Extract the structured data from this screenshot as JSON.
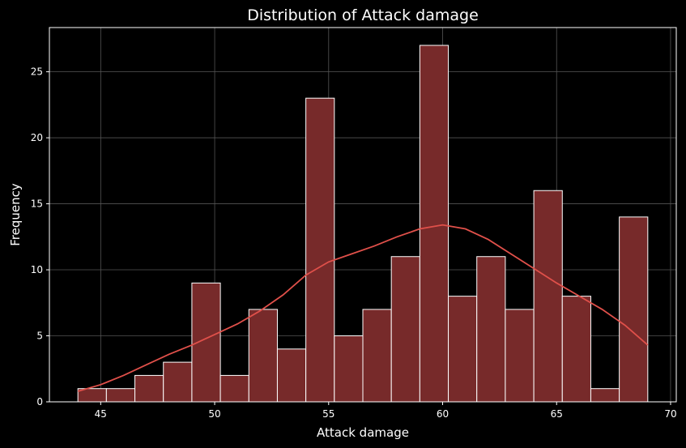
{
  "chart_data": {
    "type": "bar",
    "title": "Distribution of Attack damage",
    "xlabel": "Attack damage",
    "ylabel": "Frequency",
    "xlim": [
      42.75,
      70.25
    ],
    "ylim": [
      0,
      28.35
    ],
    "xticks": [
      45,
      50,
      55,
      60,
      65,
      70
    ],
    "yticks": [
      0,
      5,
      10,
      15,
      20,
      25
    ],
    "grid": true,
    "bin_edges": [
      44,
      45.25,
      46.5,
      47.75,
      49,
      50.25,
      51.5,
      52.75,
      54,
      55.25,
      56.5,
      57.75,
      59,
      60.25,
      61.5,
      62.75,
      64,
      65.25,
      66.5,
      67.75,
      69
    ],
    "values": [
      1,
      1,
      2,
      3,
      9,
      2,
      7,
      4,
      23,
      5,
      7,
      11,
      27,
      8,
      11,
      7,
      16,
      8,
      1,
      14
    ],
    "kde": {
      "x": [
        44,
        45,
        46,
        47,
        48,
        49,
        50,
        51,
        52,
        53,
        54,
        55,
        56,
        57,
        58,
        59,
        60,
        61,
        62,
        63,
        64,
        65,
        66,
        67,
        68,
        69
      ],
      "y": [
        0.8,
        1.3,
        2.0,
        2.8,
        3.6,
        4.3,
        5.1,
        5.9,
        6.9,
        8.1,
        9.6,
        10.6,
        11.2,
        11.8,
        12.5,
        13.1,
        13.4,
        13.1,
        12.3,
        11.2,
        10.1,
        9.0,
        8.0,
        7.0,
        5.8,
        4.3
      ]
    },
    "colors": {
      "bar_fill": "#772a2a",
      "bar_edge": "#ffffff",
      "kde_line": "#e0504a",
      "grid": "#555555",
      "background": "#000000",
      "axes_edge": "#ffffff"
    }
  }
}
